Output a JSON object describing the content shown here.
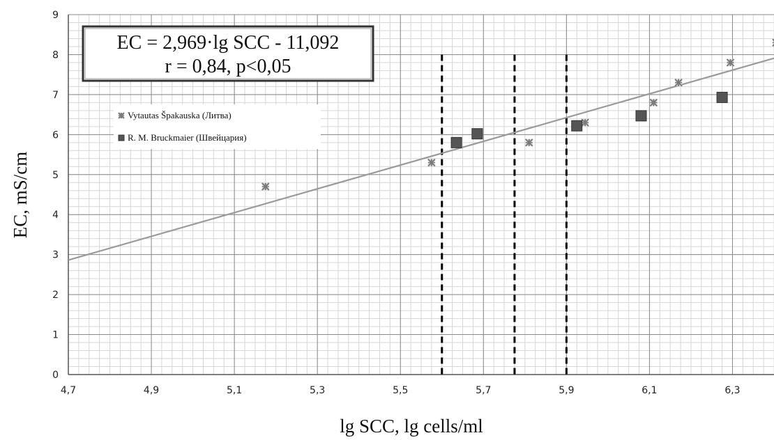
{
  "chart_data": {
    "type": "scatter",
    "xlabel": "lg SCC, lg cells/ml",
    "ylabel": "EC, mS/cm",
    "xlim": [
      4.7,
      6.4
    ],
    "ylim": [
      0,
      9
    ],
    "x_ticks": [
      "4,7",
      "4,9",
      "5,1",
      "5,3",
      "5,5",
      "5,7",
      "5,9",
      "6,1",
      "6,3"
    ],
    "x_tick_values": [
      4.7,
      4.9,
      5.1,
      5.3,
      5.5,
      5.7,
      5.9,
      6.1,
      6.3
    ],
    "y_ticks": [
      "0",
      "1",
      "2",
      "3",
      "4",
      "5",
      "6",
      "7",
      "8",
      "9"
    ],
    "y_tick_values": [
      0,
      1,
      2,
      3,
      4,
      5,
      6,
      7,
      8,
      9
    ],
    "grid": true,
    "legend_position": "upper-left",
    "annotation": {
      "equation": "EC = 2,969·lg SCC  - 11,092",
      "stats": "r = 0,84, p<0,05"
    },
    "trendline": {
      "slope": 2.969,
      "intercept": -11.092,
      "color": "#9a9a9a"
    },
    "vertical_lines": [
      5.6,
      5.775,
      5.9
    ],
    "series": [
      {
        "name": "Vytautas Špakauska (Литва)",
        "marker": "asterisk",
        "color": "#7a7a7a",
        "x": [
          5.175,
          5.575,
          5.81,
          5.945,
          6.11,
          6.17,
          6.295,
          6.405
        ],
        "y": [
          4.7,
          5.3,
          5.8,
          6.3,
          6.8,
          7.3,
          7.8,
          8.3
        ]
      },
      {
        "name": "R. M. Bruckmaier (Швейцария)",
        "marker": "square",
        "color": "#555555",
        "x": [
          5.635,
          5.685,
          5.925,
          6.08,
          6.275
        ],
        "y": [
          5.8,
          6.02,
          6.22,
          6.47,
          6.93
        ]
      }
    ]
  }
}
